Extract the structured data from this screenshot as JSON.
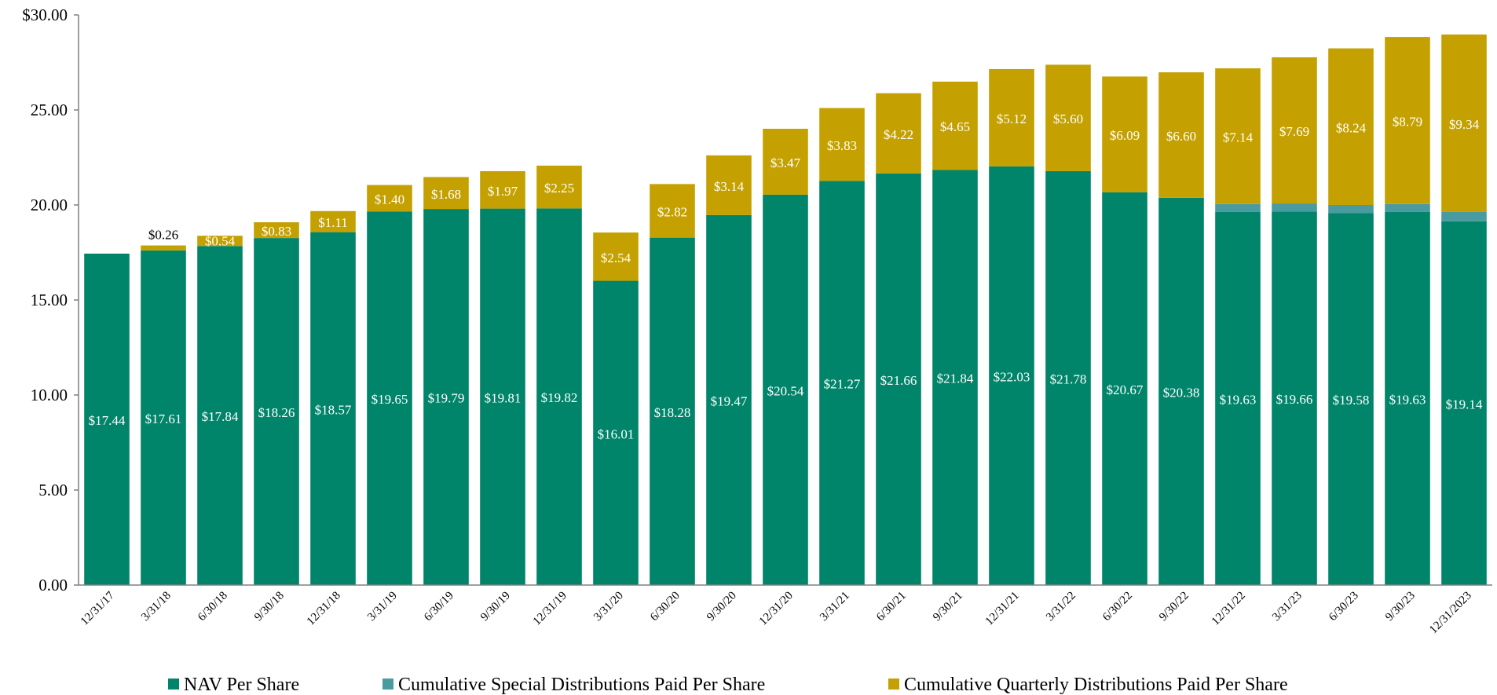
{
  "chart_data": {
    "type": "bar",
    "stacked": true,
    "title": "",
    "xlabel": "",
    "ylabel": "",
    "ylim": [
      0,
      30
    ],
    "yticks": [
      "0.00",
      "5.00",
      "10.00",
      "15.00",
      "20.00",
      "25.00",
      "$30.00"
    ],
    "grid": false,
    "legend_position": "bottom",
    "categories": [
      "12/31/17",
      "3/31/18",
      "6/30/18",
      "9/30/18",
      "12/31/18",
      "3/31/19",
      "6/30/19",
      "9/30/19",
      "12/31/19",
      "3/31/20",
      "6/30/20",
      "9/30/20",
      "12/31/20",
      "3/31/21",
      "6/30/21",
      "9/30/21",
      "12/31/21",
      "3/31/22",
      "6/30/22",
      "9/30/22",
      "12/31/22",
      "3/31/23",
      "6/30/23",
      "9/30/23",
      "12/31/2023"
    ],
    "series": [
      {
        "name": "NAV Per Share",
        "color": "#00856A",
        "label_color": "#ffffff",
        "values": [
          17.44,
          17.61,
          17.84,
          18.26,
          18.57,
          19.65,
          19.79,
          19.81,
          19.82,
          16.01,
          18.28,
          19.47,
          20.54,
          21.27,
          21.66,
          21.84,
          22.03,
          21.78,
          20.67,
          20.38,
          19.63,
          19.66,
          19.58,
          19.63,
          19.14
        ],
        "labels": [
          "$17.44",
          "$17.61",
          "$17.84",
          "$18.26",
          "$18.57",
          "$19.65",
          "$19.79",
          "$19.81",
          "$19.82",
          "$16.01",
          "$18.28",
          "$19.47",
          "$20.54",
          "$21.27",
          "$21.66",
          "$21.84",
          "$22.03",
          "$21.78",
          "$20.67",
          "$20.38",
          "$19.63",
          "$19.66",
          "$19.58",
          "$19.63",
          "$19.14"
        ]
      },
      {
        "name": "Cumulative Special Distributions Paid Per Share",
        "color": "#4A9BA0",
        "label_color": "#ffffff",
        "values": [
          0,
          0,
          0,
          0,
          0,
          0,
          0,
          0,
          0,
          0,
          0,
          0,
          0,
          0,
          0,
          0,
          0,
          0,
          0,
          0,
          0.42,
          0.42,
          0.42,
          0.42,
          0.49
        ],
        "labels": [
          "",
          "",
          "",
          "",
          "",
          "",
          "",
          "",
          "",
          "",
          "",
          "",
          "",
          "",
          "",
          "",
          "",
          "",
          "",
          "",
          "$0.42",
          "$0.42",
          "$0.42",
          "$0.42",
          "$0.49"
        ]
      },
      {
        "name": "Cumulative Quarterly Distributions Paid Per Share",
        "color": "#C4A100",
        "label_color": "#ffffff",
        "values": [
          0,
          0.26,
          0.54,
          0.83,
          1.11,
          1.4,
          1.68,
          1.97,
          2.25,
          2.54,
          2.82,
          3.14,
          3.47,
          3.83,
          4.22,
          4.65,
          5.12,
          5.6,
          6.09,
          6.6,
          7.14,
          7.69,
          8.24,
          8.79,
          9.34
        ],
        "labels": [
          "",
          "$0.26",
          "$0.54",
          "$0.83",
          "$1.11",
          "$1.40",
          "$1.68",
          "$1.97",
          "$2.25",
          "$2.54",
          "$2.82",
          "$3.14",
          "$3.47",
          "$3.83",
          "$4.22",
          "$4.65",
          "$5.12",
          "$5.60",
          "$6.09",
          "$6.60",
          "$7.14",
          "$7.69",
          "$8.24",
          "$8.79",
          "$9.34"
        ]
      }
    ]
  }
}
